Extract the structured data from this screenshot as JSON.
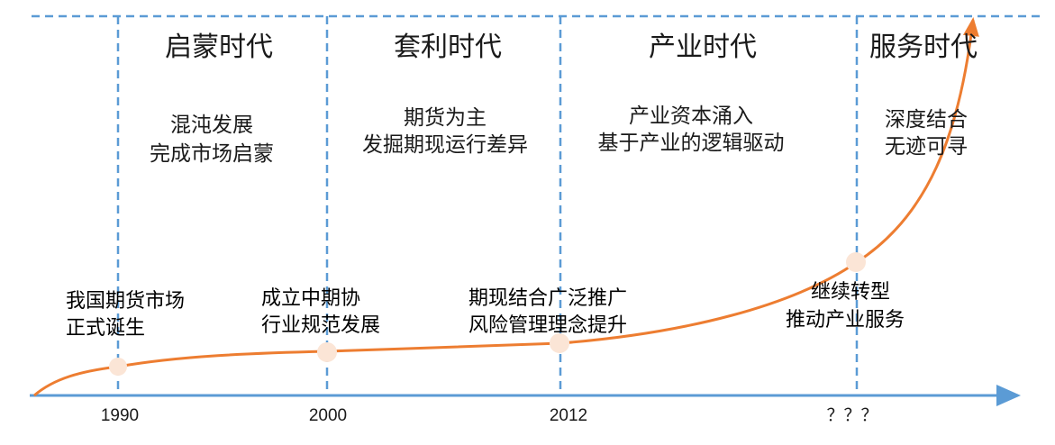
{
  "colors": {
    "axis": "#5b9bd5",
    "curve": "#ed7d31",
    "marker": "#fbe5d6",
    "text": "#1a1a1a"
  },
  "eras": [
    {
      "title": "启蒙时代",
      "desc": [
        "混沌发展",
        "完成市场启蒙"
      ]
    },
    {
      "title": "套利时代",
      "desc": [
        "期货为主",
        "发掘期现运行差异"
      ]
    },
    {
      "title": "产业时代",
      "desc": [
        "产业资本涌入",
        "基于产业的逻辑驱动"
      ]
    },
    {
      "title": "服务时代",
      "desc": [
        "深度结合",
        "无迹可寻"
      ]
    }
  ],
  "milestones": [
    {
      "label": "1990",
      "event": [
        "我国期货市场",
        "正式诞生"
      ]
    },
    {
      "label": "2000",
      "event": [
        "成立中期协",
        "行业规范发展"
      ]
    },
    {
      "label": "2012",
      "event": [
        "期现结合广泛推广",
        "风险管理理念提升"
      ]
    },
    {
      "label": "？？？",
      "event": [
        "继续转型",
        "推动产业服务"
      ]
    }
  ]
}
